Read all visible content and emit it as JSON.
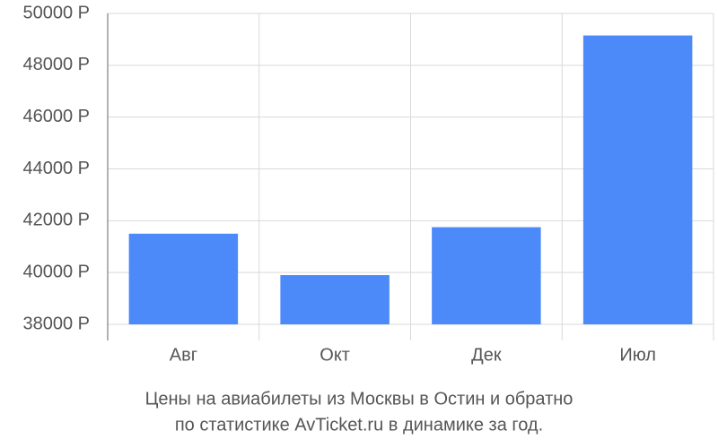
{
  "chart_data": {
    "type": "bar",
    "title": [
      "Цены на авиабилеты из Москвы в Остин и обратно",
      "по статистике AvTicket.ru в динамике за год."
    ],
    "categories": [
      "Авг",
      "Окт",
      "Дек",
      "Июл"
    ],
    "values": [
      41500,
      39900,
      41750,
      49150
    ],
    "color": "#4d8af9",
    "ylim": [
      38000,
      50000
    ],
    "yticks": [
      {
        "value": 38000,
        "label": "38000 Р"
      },
      {
        "value": 40000,
        "label": "40000 Р"
      },
      {
        "value": 42000,
        "label": "42000 Р"
      },
      {
        "value": 44000,
        "label": "44000 Р"
      },
      {
        "value": 46000,
        "label": "46000 Р"
      },
      {
        "value": 48000,
        "label": "48000 Р"
      },
      {
        "value": 50000,
        "label": "50000 Р"
      }
    ],
    "grid": true
  }
}
